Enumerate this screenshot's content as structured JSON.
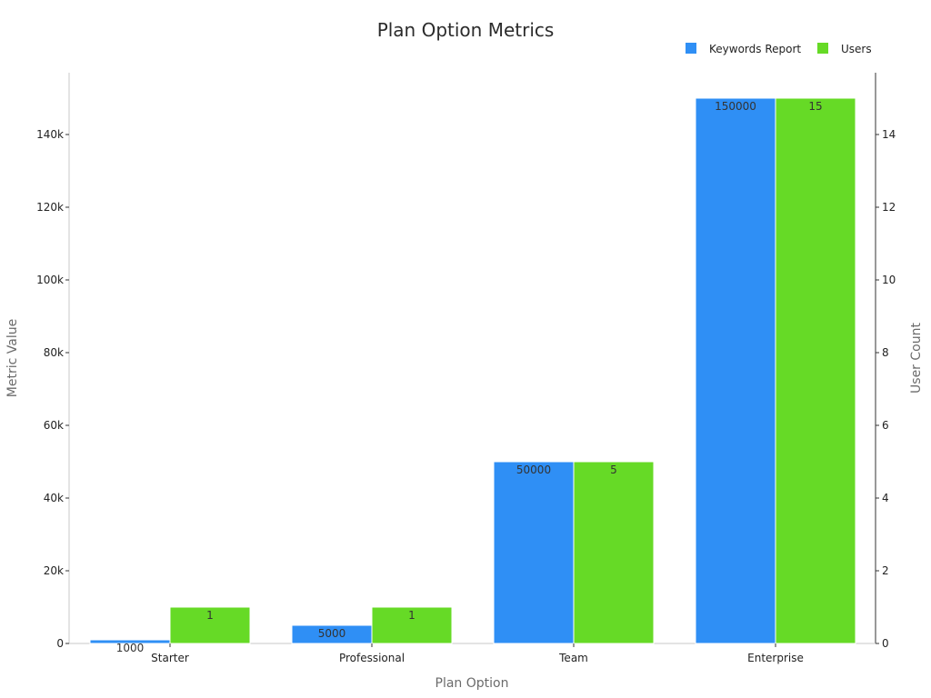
{
  "chart_data": {
    "type": "bar",
    "title": "Plan Option Metrics",
    "xlabel": "Plan Option",
    "ylabel_left": "Metric Value",
    "ylabel_right": "User Count",
    "categories": [
      "Starter",
      "Professional",
      "Team",
      "Enterprise"
    ],
    "series": [
      {
        "name": "Keywords Report",
        "axis": "left",
        "color": "#2f8ff5",
        "values": [
          1000,
          5000,
          50000,
          150000
        ],
        "labels": [
          "1000",
          "5000",
          "50000",
          "150000"
        ]
      },
      {
        "name": "Users",
        "axis": "right",
        "color": "#66da26",
        "values": [
          1,
          1,
          5,
          15
        ],
        "labels": [
          "1",
          "1",
          "5",
          "15"
        ]
      }
    ],
    "ylim_left": [
      0,
      157000
    ],
    "yticks_left": [
      {
        "value": 0,
        "label": "0"
      },
      {
        "value": 20000,
        "label": "20k"
      },
      {
        "value": 40000,
        "label": "40k"
      },
      {
        "value": 60000,
        "label": "60k"
      },
      {
        "value": 80000,
        "label": "80k"
      },
      {
        "value": 100000,
        "label": "100k"
      },
      {
        "value": 120000,
        "label": "120k"
      },
      {
        "value": 140000,
        "label": "140k"
      }
    ],
    "ylim_right": [
      0,
      15.7
    ],
    "yticks_right": [
      {
        "value": 0,
        "label": "0"
      },
      {
        "value": 2,
        "label": "2"
      },
      {
        "value": 4,
        "label": "4"
      },
      {
        "value": 6,
        "label": "6"
      },
      {
        "value": 8,
        "label": "8"
      },
      {
        "value": 10,
        "label": "10"
      },
      {
        "value": 12,
        "label": "12"
      },
      {
        "value": 14,
        "label": "14"
      }
    ],
    "legend_position": "top-right",
    "grid": false
  }
}
